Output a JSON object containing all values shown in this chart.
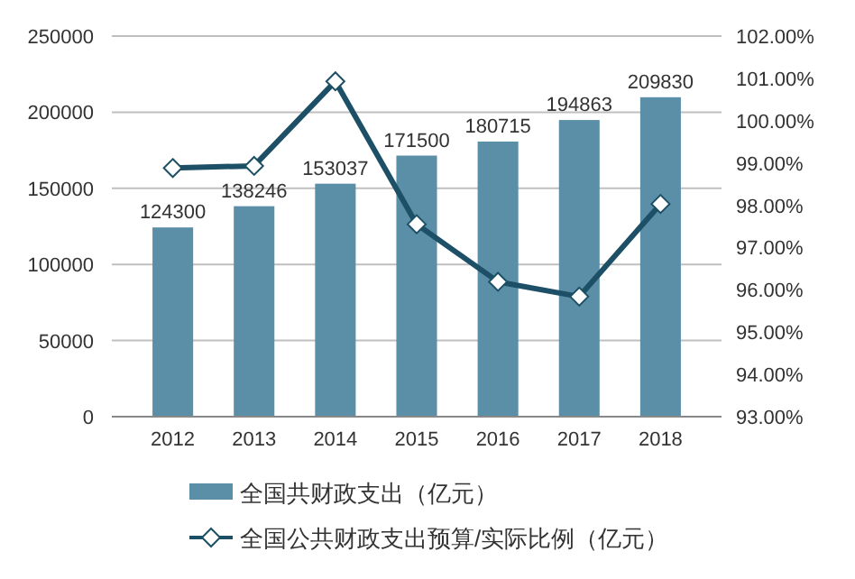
{
  "chart_data": {
    "type": "bar",
    "categories": [
      "2012",
      "2013",
      "2014",
      "2015",
      "2016",
      "2017",
      "2018"
    ],
    "series": [
      {
        "name": "全国共财政支出（亿元）",
        "color": "#5b8fa8",
        "values": [
          124300,
          138246,
          153037,
          171500,
          180715,
          194863,
          209830
        ],
        "value_labels": [
          "124300",
          "138246",
          "153037",
          "171500",
          "180715",
          "194863",
          "209830"
        ]
      },
      {
        "name": "全国公共财政支出预算/实际比例（亿元）",
        "type": "line",
        "axis": "y2",
        "color": "#1d5066",
        "marker": "diamond",
        "values": [
          98.88,
          98.93,
          100.93,
          97.55,
          96.19,
          95.84,
          98.03
        ]
      }
    ],
    "ylim": [
      0,
      250000
    ],
    "yticks": [
      0,
      50000,
      100000,
      150000,
      200000,
      250000
    ],
    "y2lim": [
      93,
      102
    ],
    "y2ticks": [
      {
        "value": 93,
        "label": "93.00%"
      },
      {
        "value": 94,
        "label": "94.00%"
      },
      {
        "value": 95,
        "label": "95.00%"
      },
      {
        "value": 96,
        "label": "96.00%"
      },
      {
        "value": 97,
        "label": "97.00%"
      },
      {
        "value": 98,
        "label": "98.00%"
      },
      {
        "value": 99,
        "label": "99.00%"
      },
      {
        "value": 100,
        "label": "100.00%"
      },
      {
        "value": 101,
        "label": "101.00%"
      },
      {
        "value": 102,
        "label": "102.00%"
      }
    ],
    "grid": "y",
    "legend": "bottom"
  }
}
